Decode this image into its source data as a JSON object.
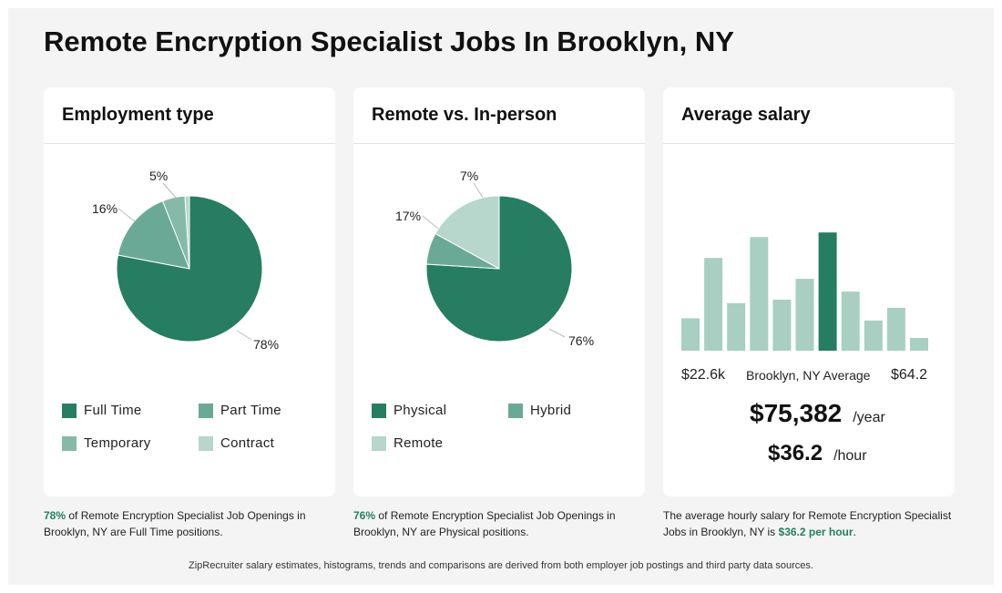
{
  "title": "Remote Encryption Specialist Jobs In Brooklyn, NY",
  "colors": {
    "primary": "#267d62",
    "secondary": "#6ba997",
    "tertiary": "#85baa8",
    "light": "#b7d6cc",
    "bar": "#a8cfc2"
  },
  "employment": {
    "heading": "Employment type",
    "slice_labels": [
      "78%",
      "16%",
      "5%"
    ],
    "legend": [
      "Full Time",
      "Part Time",
      "Temporary",
      "Contract"
    ],
    "caption": {
      "highlight": "78%",
      "text": "of Remote Encryption Specialist Job Openings in Brooklyn, NY are Full Time positions."
    }
  },
  "remote": {
    "heading": "Remote vs. In-person",
    "slice_labels": [
      "76%",
      "17%",
      "7%"
    ],
    "legend": [
      "Physical",
      "Hybrid",
      "Remote"
    ],
    "caption": {
      "highlight": "76%",
      "text": "of Remote Encryption Specialist Job Openings in Brooklyn, NY are Physical positions."
    }
  },
  "salary": {
    "heading": "Average salary",
    "range_min": "$22.6k",
    "range_label": "Brooklyn, NY Average",
    "range_max": "$64.2",
    "yearly": "$75,382",
    "yearly_unit": "/year",
    "hourly": "$36.2",
    "hourly_unit": "/hour",
    "caption": {
      "text": "The average hourly salary for Remote Encryption Specialist Jobs in Brooklyn, NY is",
      "highlight": "$36.2 per hour",
      "end": "."
    }
  },
  "footer": "ZipRecruiter salary estimates, histograms, trends and comparisons are derived from both employer job postings and third party data sources.",
  "chart_data": [
    {
      "type": "pie",
      "title": "Employment type",
      "categories": [
        "Full Time",
        "Part Time",
        "Temporary",
        "Contract"
      ],
      "values": [
        78,
        16,
        5,
        1
      ],
      "colors": [
        "#267d62",
        "#6ba997",
        "#85baa8",
        "#b7d6cc"
      ]
    },
    {
      "type": "pie",
      "title": "Remote vs. In-person",
      "categories": [
        "Physical",
        "Hybrid",
        "Remote"
      ],
      "values": [
        76,
        7,
        17
      ],
      "colors": [
        "#267d62",
        "#6ba997",
        "#b7d6cc"
      ]
    },
    {
      "type": "bar",
      "title": "Average salary",
      "values": [
        28,
        80,
        41,
        98,
        44,
        62,
        102,
        51,
        26,
        37,
        11
      ],
      "highlight_index": 6,
      "ylim": [
        0,
        110
      ]
    }
  ]
}
